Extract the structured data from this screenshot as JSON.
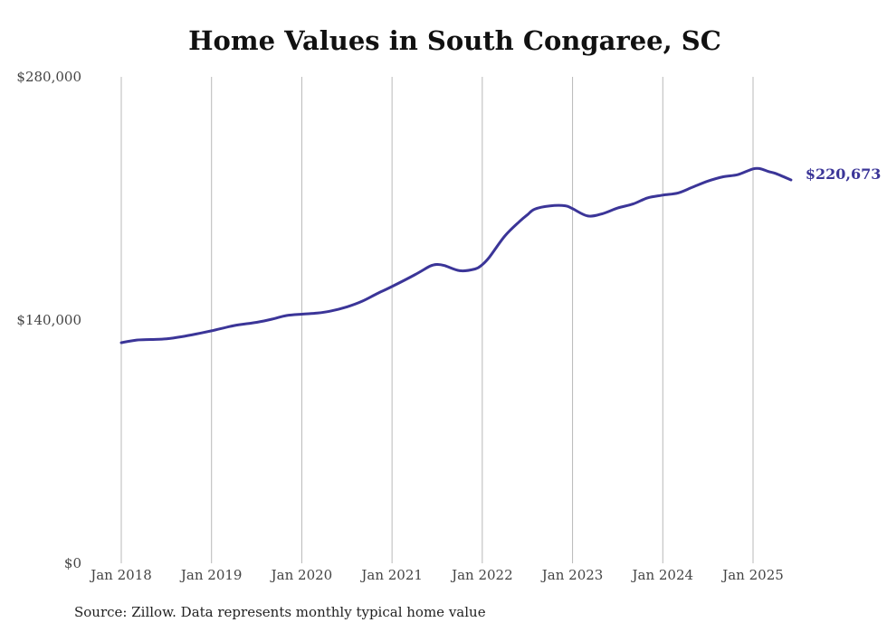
{
  "chart_data": {
    "type": "line",
    "title": "Home Values in South Congaree, SC",
    "xlabel": "",
    "ylabel": "",
    "ylim": [
      0,
      280000
    ],
    "yticks": [
      {
        "value": 0,
        "label": "$0"
      },
      {
        "value": 140000,
        "label": "$140,000"
      },
      {
        "value": 280000,
        "label": "$280,000"
      }
    ],
    "xticks": [
      {
        "value": 2018.0,
        "label": "Jan 2018"
      },
      {
        "value": 2019.0,
        "label": "Jan 2019"
      },
      {
        "value": 2020.0,
        "label": "Jan 2020"
      },
      {
        "value": 2021.0,
        "label": "Jan 2021"
      },
      {
        "value": 2022.0,
        "label": "Jan 2022"
      },
      {
        "value": 2023.0,
        "label": "Jan 2023"
      },
      {
        "value": 2024.0,
        "label": "Jan 2024"
      },
      {
        "value": 2025.0,
        "label": "Jan 2025"
      }
    ],
    "grid": "vertical",
    "line_color": "#3b3598",
    "series": [
      {
        "end_label": "$220,673",
        "x": [
          2018.0,
          2018.17,
          2018.33,
          2018.5,
          2018.67,
          2018.83,
          2019.0,
          2019.25,
          2019.5,
          2019.67,
          2019.83,
          2020.0,
          2020.17,
          2020.33,
          2020.5,
          2020.67,
          2020.83,
          2021.0,
          2021.25,
          2021.42,
          2021.5,
          2021.58,
          2021.75,
          2021.92,
          2022.0,
          2022.08,
          2022.25,
          2022.42,
          2022.5,
          2022.58,
          2022.75,
          2022.92,
          2023.0,
          2023.17,
          2023.33,
          2023.5,
          2023.67,
          2023.83,
          2024.0,
          2024.17,
          2024.33,
          2024.5,
          2024.67,
          2024.83,
          2025.0,
          2025.08,
          2025.17,
          2025.25,
          2025.42
        ],
        "values": [
          127000,
          128500,
          128800,
          129200,
          130400,
          132000,
          133800,
          136800,
          138700,
          140500,
          142600,
          143400,
          144000,
          145300,
          147600,
          150900,
          155100,
          159300,
          166000,
          171000,
          172000,
          171400,
          168400,
          169400,
          171900,
          176300,
          188400,
          197100,
          200600,
          203800,
          205700,
          205800,
          204100,
          199900,
          201200,
          204500,
          206800,
          210300,
          211900,
          213200,
          216500,
          220000,
          222500,
          223700,
          227000,
          227100,
          225500,
          224400,
          220673
        ]
      }
    ]
  },
  "source": "Source: Zillow. Data represents monthly typical home value"
}
